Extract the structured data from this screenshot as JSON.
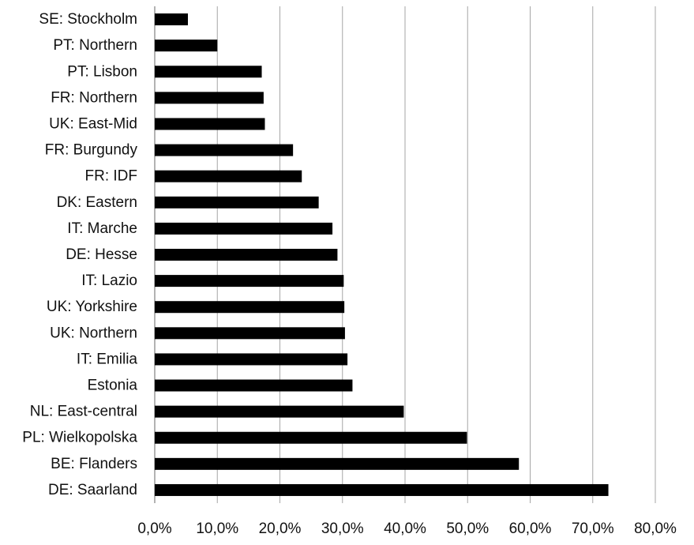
{
  "chart_data": {
    "type": "bar",
    "orientation": "horizontal",
    "categories": [
      "SE: Stockholm",
      "PT: Northern",
      "PT: Lisbon",
      "FR: Northern",
      "UK: East-Mid",
      "FR: Burgundy",
      "FR: IDF",
      "DK: Eastern",
      "IT: Marche",
      "DE: Hesse",
      "IT: Lazio",
      "UK: Yorkshire",
      "UK: Northern",
      "IT: Emilia",
      "Estonia",
      "NL: East-central",
      "PL: Wielkopolska",
      "BE: Flanders",
      "DE: Saarland"
    ],
    "values": [
      0.053,
      0.1,
      0.171,
      0.174,
      0.176,
      0.221,
      0.235,
      0.262,
      0.284,
      0.292,
      0.302,
      0.303,
      0.304,
      0.308,
      0.316,
      0.398,
      0.499,
      0.582,
      0.725
    ],
    "xlim": [
      0,
      0.8
    ],
    "ticks": [
      {
        "value": 0.0,
        "label": "0,0%"
      },
      {
        "value": 0.1,
        "label": "10,0%"
      },
      {
        "value": 0.2,
        "label": "20,0%"
      },
      {
        "value": 0.3,
        "label": "30,0%"
      },
      {
        "value": 0.4,
        "label": "40,0%"
      },
      {
        "value": 0.5,
        "label": "50,0%"
      },
      {
        "value": 0.6,
        "label": "60,0%"
      },
      {
        "value": 0.7,
        "label": "70,0%"
      },
      {
        "value": 0.8,
        "label": "80,0%"
      }
    ],
    "grid": true,
    "colors": {
      "bar": "#000000",
      "grid": "#a6a6a6",
      "axis": "#808080"
    }
  }
}
